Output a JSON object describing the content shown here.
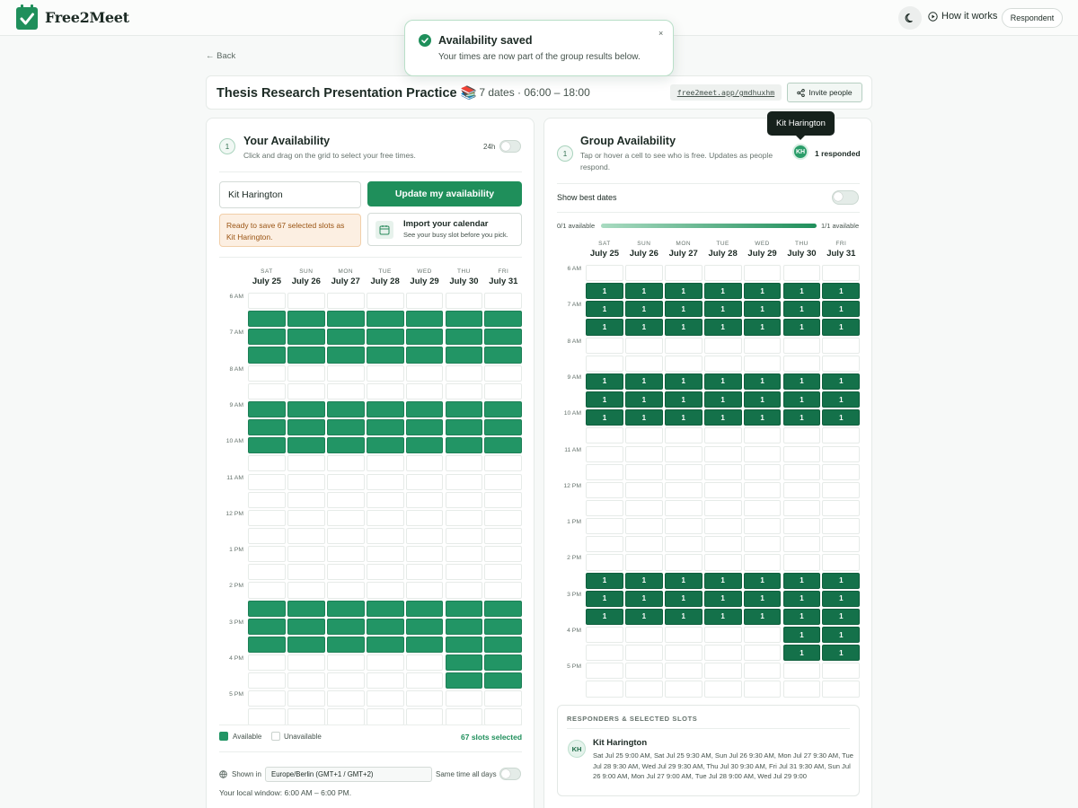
{
  "app": {
    "name": "Free2Meet",
    "how_it_works": "How it works",
    "role": "Respondent"
  },
  "toast": {
    "title": "Availability saved",
    "message": "Your times are now part of the group results below.",
    "close": "×"
  },
  "nav": {
    "back": "← Back"
  },
  "event": {
    "title": "Thesis Research Presentation Practice 📚",
    "meta": "· 7 dates · 06:00 – 18:00",
    "link": "free2meet.app/gmdhuxhm",
    "invite": "Invite people"
  },
  "days": [
    {
      "dow": "SAT",
      "label": "July 25"
    },
    {
      "dow": "SUN",
      "label": "July 26"
    },
    {
      "dow": "MON",
      "label": "July 27"
    },
    {
      "dow": "TUE",
      "label": "July 28"
    },
    {
      "dow": "WED",
      "label": "July 29"
    },
    {
      "dow": "THU",
      "label": "July 30"
    },
    {
      "dow": "FRI",
      "label": "July 31"
    }
  ],
  "time_labels": [
    "6 AM",
    "7 AM",
    "8 AM",
    "9 AM",
    "10 AM",
    "11 AM",
    "12 PM",
    "1 PM",
    "2 PM",
    "3 PM",
    "4 PM",
    "5 PM"
  ],
  "your": {
    "step": "1",
    "title": "Your Availability",
    "subtitle": "Click and drag on the grid to select your free times.",
    "toggle_24h": "24h",
    "name_value": "Kit Harington",
    "update_button": "Update my availability",
    "ready_note": "Ready to save 67 selected slots as Kit Harington.",
    "import_title": "Import your calendar",
    "import_sub": "See your busy slot before you pick.",
    "legend_available": "Available",
    "legend_unavailable": "Unavailable",
    "slots_selected": "67 slots selected",
    "shown_in": "Shown in",
    "timezone": "Europe/Berlin (GMT+1 / GMT+2)",
    "same_time": "Same time all days",
    "local_window": "Your local window: 6:00 AM – 6:00 PM.",
    "selected_rows_all_days": [
      1,
      2,
      3,
      6,
      7,
      8,
      17,
      18,
      19
    ],
    "selected_rows_thu_fri": [
      20,
      21
    ]
  },
  "group": {
    "step": "1",
    "title": "Group Availability",
    "subtitle": "Tap or hover a cell to see who is free. Updates as people respond.",
    "responded": "1 responded",
    "tooltip": "Kit Harington",
    "avatar_initials": "KH",
    "show_best": "Show best dates",
    "range_min": "0/1 available",
    "range_max": "1/1 available",
    "cell_count": "1",
    "responders_header": "RESPONDERS & SELECTED SLOTS",
    "responder_name": "Kit Harington",
    "responder_slots": "Sat Jul 25 9:00 AM, Sat Jul 25 9:30 AM, Sun Jul 26 9:30 AM, Mon Jul 27 9:30 AM, Tue Jul 28 9:30 AM, Wed Jul 29 9:30 AM, Thu Jul 30 9:30 AM, Fri Jul 31 9:30 AM, Sun Jul 26 9:00 AM, Mon Jul 27 9:00 AM, Tue Jul 28 9:00 AM, Wed Jul 29 9:00"
  },
  "colors": {
    "accent": "#1f8f5b",
    "selected": "#229565",
    "group_cell": "#14714a"
  }
}
